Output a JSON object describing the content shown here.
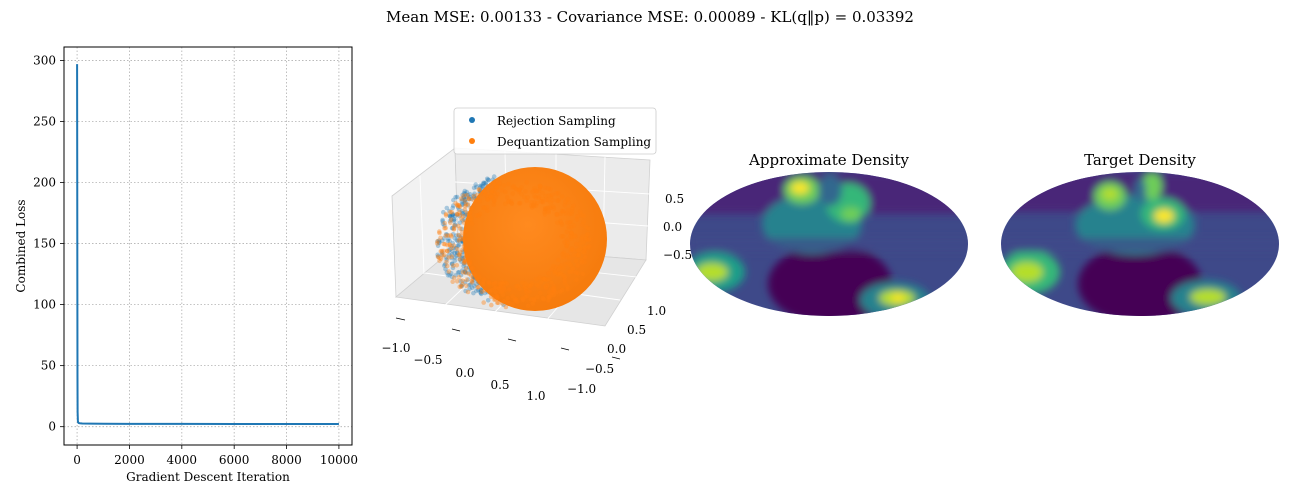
{
  "figure": {
    "suptitle": "Mean MSE: 0.00133 - Covariance MSE: 0.00089 - KL(q‖p) = 0.03392"
  },
  "colors": {
    "line_blue": "#1f77b4",
    "orange": "#ff7f0e",
    "viridis": [
      "#440154",
      "#482878",
      "#3e4989",
      "#31688e",
      "#26828e",
      "#1f9e89",
      "#35b779",
      "#6ece58",
      "#b5de2b",
      "#fde725"
    ]
  },
  "chart_data": [
    {
      "type": "line",
      "xlabel": "Gradient Descent Iteration",
      "ylabel": "Combined Loss",
      "xlim": [
        -500,
        10500
      ],
      "ylim": [
        -15,
        311
      ],
      "xticks": [
        0,
        2000,
        4000,
        6000,
        8000,
        10000
      ],
      "yticks": [
        0,
        50,
        100,
        150,
        200,
        250,
        300
      ],
      "grid": true,
      "series": [
        {
          "x": [
            0,
            5,
            10,
            15,
            20,
            30,
            40,
            60,
            100,
            200,
            500,
            1000,
            2000,
            4000,
            6000,
            8000,
            10000
          ],
          "values": [
            297,
            220,
            120,
            40,
            12,
            5,
            3.5,
            3.0,
            2.8,
            2.6,
            2.5,
            2.4,
            2.3,
            2.3,
            2.2,
            2.2,
            2.2
          ]
        }
      ]
    },
    {
      "type": "scatter",
      "legend": [
        "Rejection Sampling",
        "Dequantization Sampling"
      ],
      "legend_position": "top",
      "xticks": [
        "−1.0",
        "−0.5",
        "0.0",
        "0.5",
        "1.0"
      ],
      "yticks": [
        "−1.0",
        "−0.5",
        "0.0",
        "0.5",
        "1.0"
      ],
      "zticks": [
        "−0.5",
        "0.0",
        "0.5"
      ]
    },
    {
      "type": "heatmap",
      "title": "Approximate Density"
    },
    {
      "type": "heatmap",
      "title": "Target Density"
    }
  ]
}
